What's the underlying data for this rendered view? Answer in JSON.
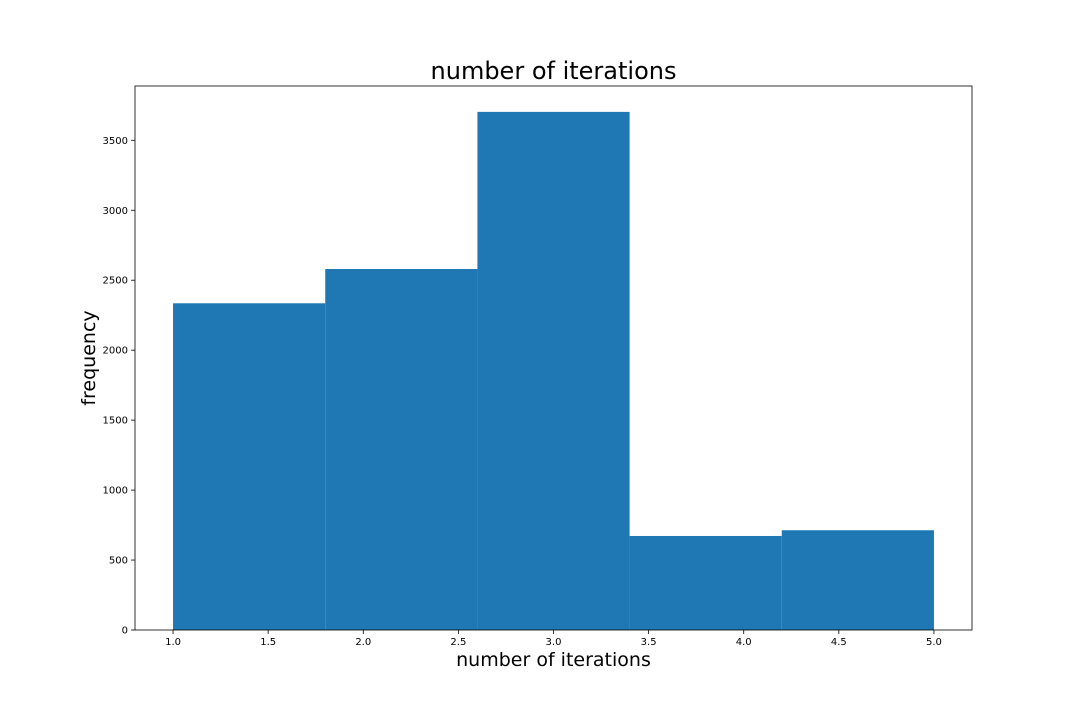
{
  "chart_data": {
    "type": "bar",
    "title": "number of iterations",
    "xlabel": "number of iterations",
    "ylabel": "frequency",
    "bins": [
      {
        "x0": 1.0,
        "x1": 1.8,
        "value": 2335
      },
      {
        "x0": 1.8,
        "x1": 2.6,
        "value": 2580
      },
      {
        "x0": 2.6,
        "x1": 3.4,
        "value": 3703
      },
      {
        "x0": 3.4,
        "x1": 4.2,
        "value": 672
      },
      {
        "x0": 4.2,
        "x1": 5.0,
        "value": 713
      }
    ],
    "xlim": [
      0.8,
      5.2
    ],
    "ylim": [
      0,
      3888
    ],
    "x_ticks": [
      1.0,
      1.5,
      2.0,
      2.5,
      3.0,
      3.5,
      4.0,
      4.5,
      5.0
    ],
    "x_tick_labels": [
      "1.0",
      "1.5",
      "2.0",
      "2.5",
      "3.0",
      "3.5",
      "4.0",
      "4.5",
      "5.0"
    ],
    "y_ticks": [
      0,
      500,
      1000,
      1500,
      2000,
      2500,
      3000,
      3500
    ],
    "y_tick_labels": [
      "0",
      "500",
      "1000",
      "1500",
      "2000",
      "2500",
      "3000",
      "3500"
    ],
    "grid": false,
    "bar_color": "#1f77b4"
  }
}
